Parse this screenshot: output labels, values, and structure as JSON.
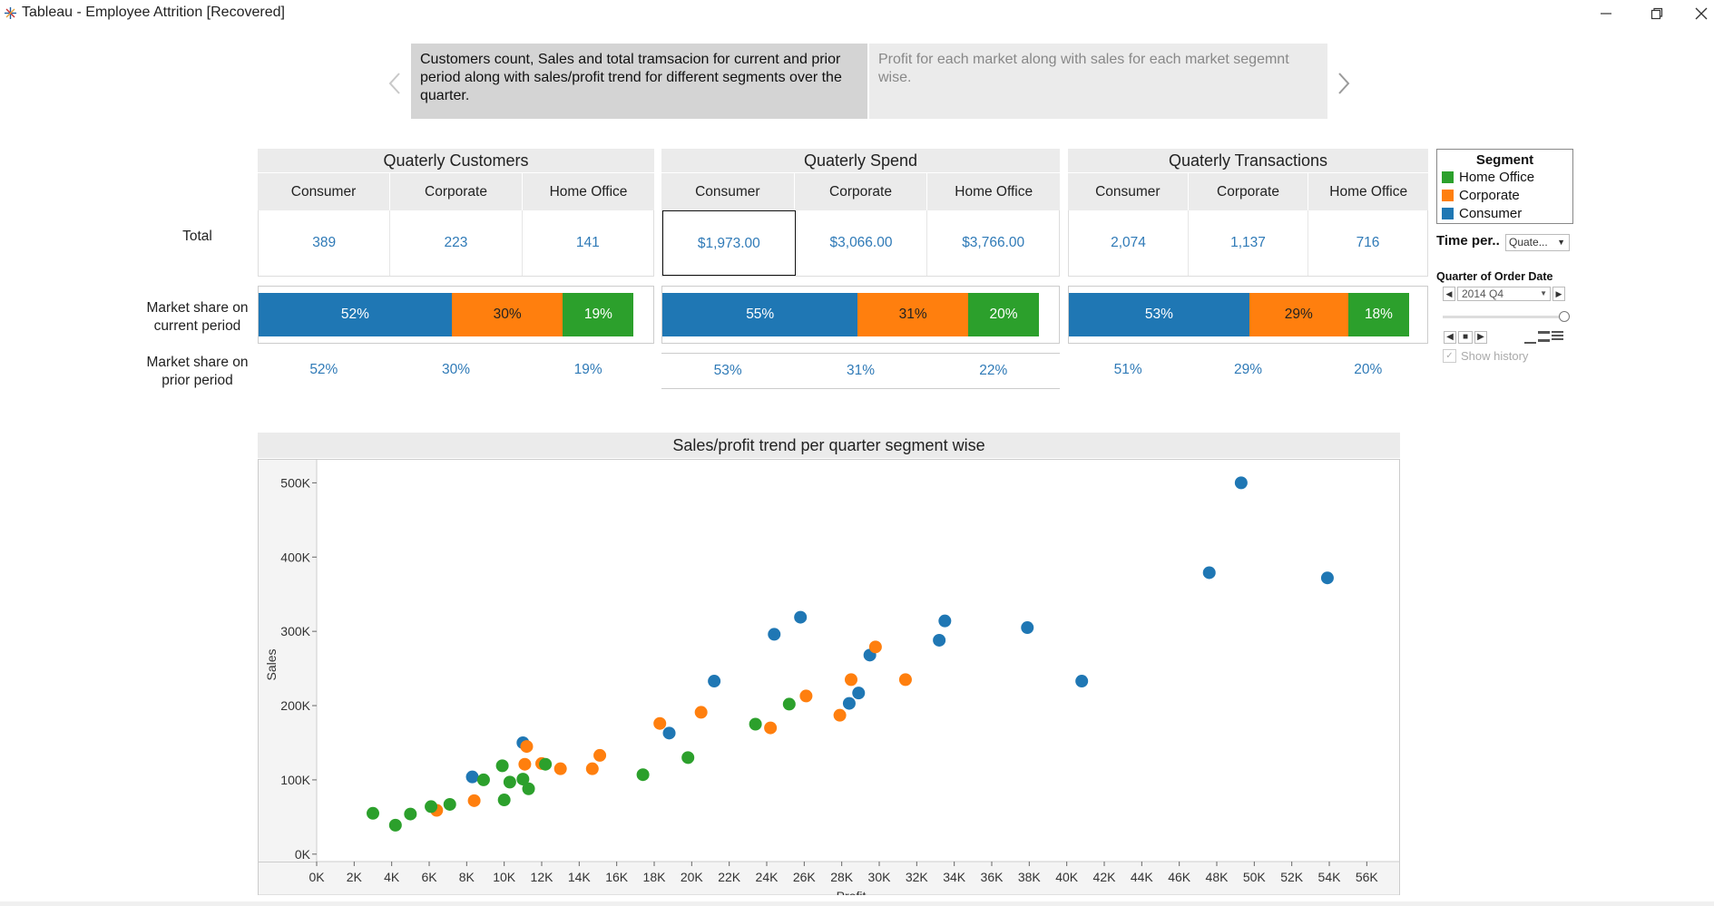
{
  "window": {
    "title": "Tableau - Employee Attrition [Recovered]",
    "min_icon": "minimize-icon",
    "max_icon": "restore-icon",
    "close_icon": "close-icon"
  },
  "story": {
    "points": [
      {
        "text": "Customers count, Sales and total tramsacion for current and prior period along with sales/profit trend for different segments over the quarter."
      },
      {
        "text": "Profit for each market along with sales for each market segemnt wise."
      }
    ]
  },
  "row_labels": {
    "total": "Total",
    "current_1": "Market share on",
    "current_2": "current period",
    "prior_1": "Market share on",
    "prior_2": "prior period"
  },
  "segments": [
    "Consumer",
    "Corporate",
    "Home Office"
  ],
  "panels": {
    "customers": {
      "title": "Quaterly Customers",
      "totals": [
        "389",
        "223",
        "141"
      ],
      "current": [
        "52%",
        "30%",
        "19%"
      ],
      "current_values": [
        52,
        30,
        19
      ],
      "prior": [
        "52%",
        "30%",
        "19%"
      ]
    },
    "spend": {
      "title": "Quaterly Spend",
      "totals": [
        "$1,973.00",
        "$3,066.00",
        "$3,766.00"
      ],
      "current": [
        "55%",
        "31%",
        "20%"
      ],
      "current_values": [
        55,
        31,
        20
      ],
      "prior": [
        "53%",
        "31%",
        "22%"
      ]
    },
    "transactions": {
      "title": "Quaterly Transactions",
      "totals": [
        "2,074",
        "1,137",
        "716"
      ],
      "current": [
        "53%",
        "29%",
        "18%"
      ],
      "current_values": [
        53,
        29,
        18
      ],
      "prior": [
        "51%",
        "29%",
        "20%"
      ]
    }
  },
  "legend": {
    "title": "Segment",
    "items": [
      {
        "label": "Home Office",
        "color": "#2ca02c"
      },
      {
        "label": "Corporate",
        "color": "#ff7f0e"
      },
      {
        "label": "Consumer",
        "color": "#1f77b4"
      }
    ]
  },
  "colors": {
    "Consumer": "#1f77b4",
    "Corporate": "#ff7f0e",
    "Home Office": "#2ca02c"
  },
  "filters": {
    "time_period_label": "Time per..",
    "time_period_value": "Quate...",
    "quarter_label": "Quarter of Order Date",
    "quarter_value": "2014 Q4",
    "show_history": "Show history"
  },
  "chart_data": {
    "type": "scatter",
    "title": "Sales/profit trend per quarter segment wise",
    "xlabel": "Profit",
    "ylabel": "Sales",
    "xlim": [
      0,
      57000
    ],
    "ylim": [
      -10000,
      520000
    ],
    "x_ticks": [
      "0K",
      "2K",
      "4K",
      "6K",
      "8K",
      "10K",
      "12K",
      "14K",
      "16K",
      "18K",
      "20K",
      "22K",
      "24K",
      "26K",
      "28K",
      "30K",
      "32K",
      "34K",
      "36K",
      "38K",
      "40K",
      "42K",
      "44K",
      "46K",
      "48K",
      "50K",
      "52K",
      "54K",
      "56K"
    ],
    "y_ticks": [
      {
        "v": 0,
        "label": "0K"
      },
      {
        "v": 100000,
        "label": "100K"
      },
      {
        "v": 200000,
        "label": "200K"
      },
      {
        "v": 300000,
        "label": "300K"
      },
      {
        "v": 400000,
        "label": "400K"
      },
      {
        "v": 500000,
        "label": "500K"
      }
    ],
    "series": [
      {
        "name": "Consumer",
        "points": [
          [
            8300,
            104000
          ],
          [
            11000,
            150000
          ],
          [
            18800,
            163000
          ],
          [
            21200,
            233000
          ],
          [
            24400,
            296000
          ],
          [
            25800,
            319000
          ],
          [
            28400,
            203000
          ],
          [
            28900,
            217000
          ],
          [
            29500,
            268000
          ],
          [
            33200,
            288000
          ],
          [
            33500,
            314000
          ],
          [
            37900,
            305000
          ],
          [
            40800,
            233000
          ],
          [
            47600,
            379000
          ],
          [
            49300,
            500000
          ],
          [
            53900,
            372000
          ]
        ]
      },
      {
        "name": "Corporate",
        "points": [
          [
            6400,
            59000
          ],
          [
            8400,
            72000
          ],
          [
            11100,
            121000
          ],
          [
            11200,
            145000
          ],
          [
            12000,
            122000
          ],
          [
            13000,
            115000
          ],
          [
            14700,
            115000
          ],
          [
            15100,
            133000
          ],
          [
            18300,
            176000
          ],
          [
            20500,
            191000
          ],
          [
            24200,
            170000
          ],
          [
            26100,
            213000
          ],
          [
            27900,
            187000
          ],
          [
            28500,
            235000
          ],
          [
            29800,
            279000
          ],
          [
            31400,
            235000
          ]
        ]
      },
      {
        "name": "Home Office",
        "points": [
          [
            3000,
            55000
          ],
          [
            4200,
            39000
          ],
          [
            5000,
            54000
          ],
          [
            6100,
            64000
          ],
          [
            7100,
            67000
          ],
          [
            8900,
            100000
          ],
          [
            9900,
            119000
          ],
          [
            10000,
            73000
          ],
          [
            10300,
            97000
          ],
          [
            11000,
            101000
          ],
          [
            11300,
            88000
          ],
          [
            12200,
            121000
          ],
          [
            17400,
            107000
          ],
          [
            19800,
            130000
          ],
          [
            23400,
            175000
          ],
          [
            25200,
            202000
          ]
        ]
      }
    ]
  }
}
